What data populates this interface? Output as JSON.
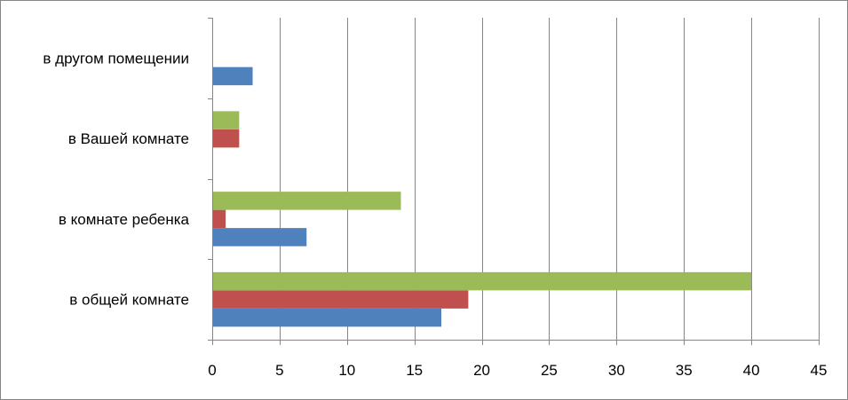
{
  "chart_data": {
    "type": "bar",
    "orientation": "horizontal",
    "categories": [
      "в общей комнате",
      "в комнате ребенка",
      "в Вашей комнате",
      "в другом помещении"
    ],
    "series": [
      {
        "values": [
          17,
          7,
          0,
          3
        ],
        "color": "#4F81BD"
      },
      {
        "values": [
          19,
          1,
          2,
          0
        ],
        "color": "#C0504D"
      },
      {
        "values": [
          40,
          14,
          2,
          0
        ],
        "color": "#9BBB59"
      }
    ],
    "xlim": [
      0,
      45
    ],
    "xticks": [
      0,
      5,
      10,
      15,
      20,
      25,
      30,
      35,
      40,
      45
    ],
    "xlabel": "",
    "ylabel": "",
    "title": "",
    "grid": "vertical",
    "legend": "none"
  }
}
